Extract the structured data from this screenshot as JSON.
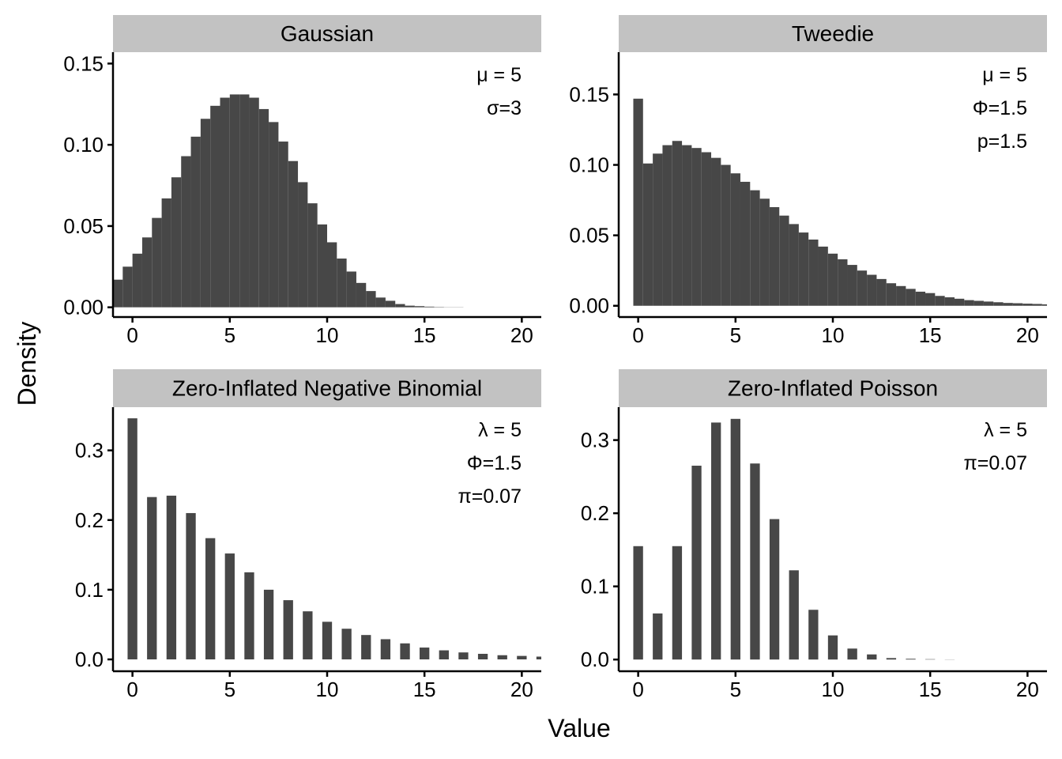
{
  "chart_data": {
    "type": "bar",
    "xlabel": "Value",
    "ylabel": "Density",
    "bar_color": "#474747",
    "strip_color": "#c2c2c2",
    "grid": false,
    "panels": [
      {
        "title": "Gaussian",
        "kind": "histogram",
        "annotations": [
          "μ = 5",
          "σ=3"
        ],
        "xlim": [
          -1,
          21
        ],
        "ylim": [
          -0.006,
          0.157
        ],
        "xticks": [
          0,
          5,
          10,
          15,
          20
        ],
        "xtick_labels": [
          "0",
          "5",
          "10",
          "15",
          "20"
        ],
        "yticks": [
          0,
          0.05,
          0.1,
          0.15
        ],
        "ytick_labels": [
          "0.00",
          "0.05",
          "0.10",
          "0.15"
        ],
        "bin_start": -1,
        "bin_width": 0.5,
        "values": [
          0.017,
          0.025,
          0.033,
          0.043,
          0.055,
          0.067,
          0.08,
          0.093,
          0.105,
          0.116,
          0.124,
          0.129,
          0.131,
          0.131,
          0.129,
          0.122,
          0.114,
          0.102,
          0.09,
          0.077,
          0.064,
          0.051,
          0.04,
          0.03,
          0.022,
          0.015,
          0.01,
          0.006,
          0.004,
          0.002,
          0.001,
          0.0007,
          0.0004,
          0.0002,
          0.0001,
          0.0001,
          0,
          0,
          0,
          0,
          0,
          0,
          0,
          0
        ]
      },
      {
        "title": "Tweedie",
        "kind": "histogram",
        "annotations": [
          "μ = 5",
          "Φ=1.5",
          "p=1.5"
        ],
        "xlim": [
          -1,
          21
        ],
        "ylim": [
          -0.008,
          0.18
        ],
        "xticks": [
          0,
          5,
          10,
          15,
          20
        ],
        "xtick_labels": [
          "0",
          "5",
          "10",
          "15",
          "20"
        ],
        "yticks": [
          0,
          0.05,
          0.1,
          0.15
        ],
        "ytick_labels": [
          "0.00",
          "0.05",
          "0.10",
          "0.15"
        ],
        "bin_start": -0.25,
        "bin_width": 0.5,
        "values": [
          0.147,
          0.101,
          0.108,
          0.114,
          0.117,
          0.114,
          0.112,
          0.109,
          0.105,
          0.1,
          0.094,
          0.088,
          0.082,
          0.076,
          0.07,
          0.064,
          0.058,
          0.052,
          0.047,
          0.042,
          0.037,
          0.033,
          0.029,
          0.025,
          0.022,
          0.019,
          0.016,
          0.014,
          0.012,
          0.01,
          0.009,
          0.007,
          0.006,
          0.005,
          0.004,
          0.0035,
          0.003,
          0.0025,
          0.002,
          0.0018,
          0.0015,
          0.0013,
          0.001
        ]
      },
      {
        "title": "Zero-Inflated Negative Binomial",
        "kind": "discrete",
        "annotations": [
          "λ = 5",
          "Φ=1.5",
          "π=0.07"
        ],
        "xlim": [
          -1,
          21
        ],
        "ylim": [
          -0.017,
          0.362
        ],
        "xticks": [
          0,
          5,
          10,
          15,
          20
        ],
        "xtick_labels": [
          "0",
          "5",
          "10",
          "15",
          "20"
        ],
        "yticks": [
          0,
          0.1,
          0.2,
          0.3
        ],
        "ytick_labels": [
          "0.0",
          "0.1",
          "0.2",
          "0.3"
        ],
        "x": [
          0,
          1,
          2,
          3,
          4,
          5,
          6,
          7,
          8,
          9,
          10,
          11,
          12,
          13,
          14,
          15,
          16,
          17,
          18,
          19,
          20,
          21
        ],
        "values": [
          0.346,
          0.233,
          0.235,
          0.21,
          0.174,
          0.152,
          0.125,
          0.1,
          0.085,
          0.069,
          0.054,
          0.044,
          0.035,
          0.029,
          0.023,
          0.017,
          0.013,
          0.01,
          0.008,
          0.006,
          0.005,
          0.004
        ]
      },
      {
        "title": "Zero-Inflated Poisson",
        "kind": "discrete",
        "annotations": [
          "λ = 5",
          "π=0.07"
        ],
        "xlim": [
          -1,
          21
        ],
        "ylim": [
          -0.016,
          0.345
        ],
        "xticks": [
          0,
          5,
          10,
          15,
          20
        ],
        "xtick_labels": [
          "0",
          "5",
          "10",
          "15",
          "20"
        ],
        "yticks": [
          0,
          0.1,
          0.2,
          0.3
        ],
        "ytick_labels": [
          "0.0",
          "0.1",
          "0.2",
          "0.3"
        ],
        "x": [
          0,
          1,
          2,
          3,
          4,
          5,
          6,
          7,
          8,
          9,
          10,
          11,
          12,
          13,
          14,
          15,
          16
        ],
        "values": [
          0.155,
          0.063,
          0.155,
          0.265,
          0.324,
          0.329,
          0.268,
          0.192,
          0.122,
          0.068,
          0.033,
          0.015,
          0.007,
          0.002,
          0.001,
          0.0005,
          0.0002
        ]
      }
    ]
  }
}
